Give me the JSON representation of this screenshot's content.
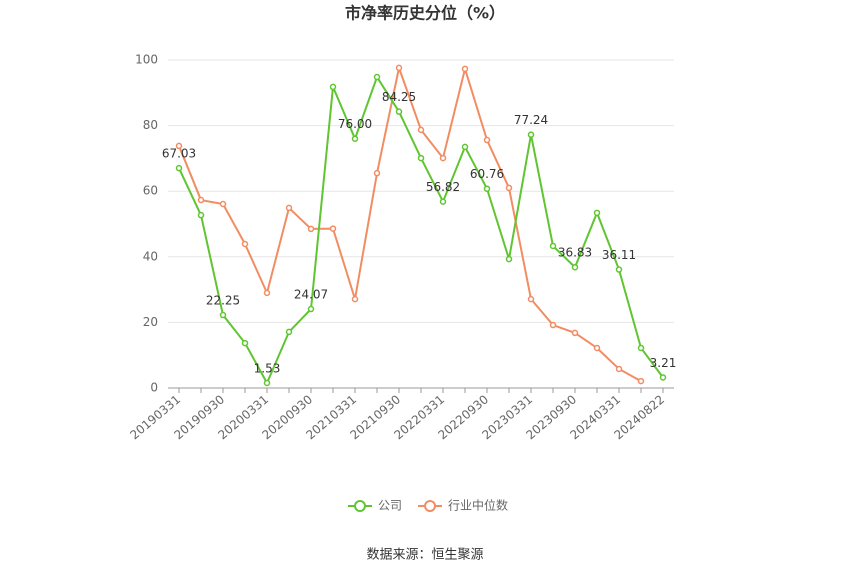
{
  "chart_data": {
    "type": "line",
    "title": "市净率历史分位（%）",
    "categories": [
      "20190331",
      null,
      "20190930",
      null,
      "20200331",
      null,
      "20200930",
      null,
      "20210331",
      null,
      "20210930",
      null,
      "20220331",
      null,
      "20220930",
      null,
      "20230331",
      null,
      "20230930",
      null,
      "20240331",
      null,
      "20240822"
    ],
    "series": [
      {
        "name": "公司",
        "color": "#5fc531",
        "values": [
          67.03,
          52.7,
          22.25,
          13.7,
          1.53,
          17.1,
          24.07,
          91.8,
          76.0,
          94.8,
          84.25,
          70.1,
          56.82,
          73.5,
          60.76,
          39.3,
          77.24,
          43.3,
          36.83,
          53.4,
          36.11,
          12.2,
          3.21
        ],
        "value_labels": [
          "67.03",
          null,
          "22.25",
          null,
          "1.53",
          null,
          "24.07",
          null,
          "76.00",
          null,
          "84.25",
          null,
          "56.82",
          null,
          "60.76",
          null,
          "77.24",
          null,
          "36.83",
          null,
          "36.11",
          null,
          "3.21"
        ]
      },
      {
        "name": "行业中位数",
        "color": "#f28c62",
        "values": [
          73.8,
          57.3,
          56.1,
          43.9,
          29.0,
          54.9,
          48.5,
          48.6,
          27.1,
          65.5,
          97.6,
          78.7,
          70.1,
          97.3,
          75.6,
          61.0,
          27.1,
          19.2,
          16.8,
          12.2,
          5.8,
          2.1,
          null
        ]
      }
    ],
    "ylim": [
      0,
      100
    ],
    "yticks": [
      0,
      20,
      40,
      60,
      80,
      100
    ],
    "grid": true,
    "source": "数据来源：恒生聚源"
  }
}
